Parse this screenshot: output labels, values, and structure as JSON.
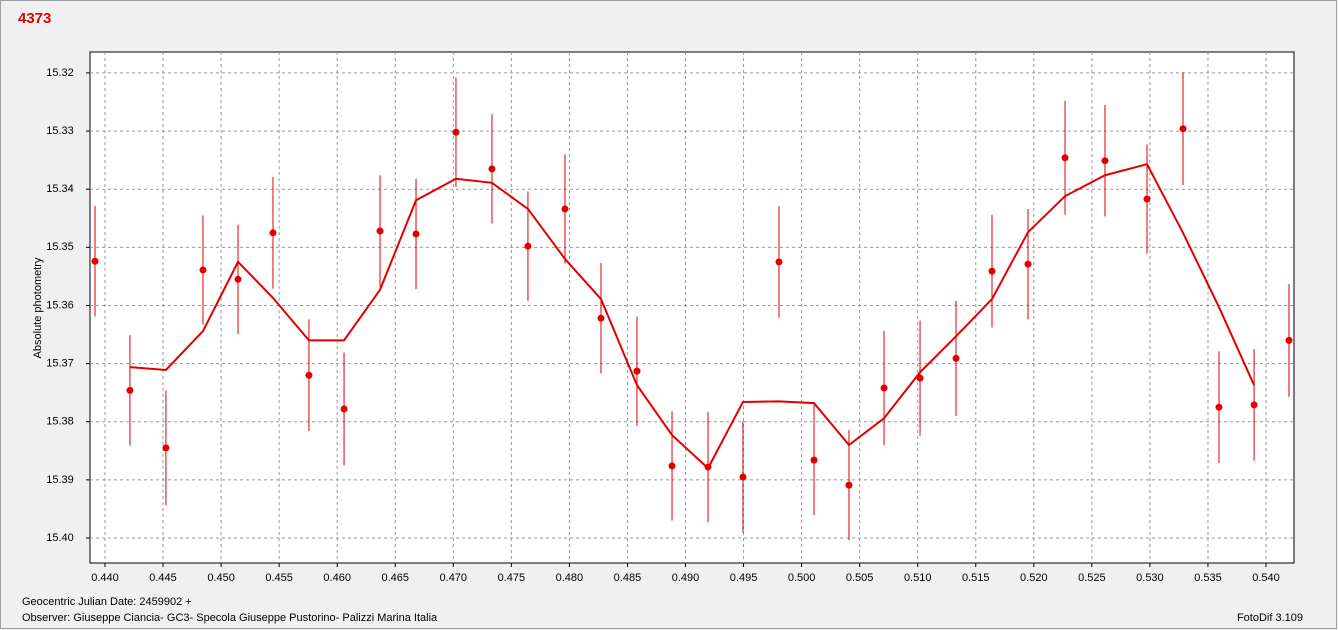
{
  "chart_data": {
    "type": "scatter",
    "title": "4373",
    "ylabel": "Absolute photometry",
    "footer": [
      "Geocentric Julian Date: 2459902 +",
      "Observer: Giuseppe Ciancia- GC3- Specola Giuseppe Pustorino- Palizzi Marina Italia"
    ],
    "software": "FotoDif 3.109",
    "grid": true,
    "y_inverted": true,
    "xlim": [
      0.43871,
      0.54241
    ],
    "ylim": [
      15.3164,
      15.4043
    ],
    "xticks": [
      {
        "value": 0.44,
        "label": "0.440"
      },
      0.445,
      {
        "value": 0.45,
        "label": "0.450"
      },
      0.455,
      {
        "value": 0.46,
        "label": "0.460"
      },
      0.465,
      {
        "value": 0.47,
        "label": "0.470"
      },
      0.475,
      {
        "value": 0.48,
        "label": "0.480"
      },
      0.485,
      {
        "value": 0.49,
        "label": "0.490"
      },
      0.495,
      {
        "value": 0.5,
        "label": "0.500"
      },
      0.505,
      {
        "value": 0.51,
        "label": "0.510"
      },
      0.515,
      {
        "value": 0.52,
        "label": "0.520"
      },
      0.525,
      {
        "value": 0.53,
        "label": "0.530"
      },
      0.535,
      {
        "value": 0.54,
        "label": "0.540"
      }
    ],
    "yticks": [
      15.32,
      15.33,
      15.34,
      15.35,
      15.36,
      15.37,
      15.38,
      15.39,
      {
        "value": 15.4,
        "label": "15.40"
      }
    ],
    "points": {
      "color": "#e00000",
      "x": [
        0.43914,
        0.44215,
        0.44525,
        0.44844,
        0.45146,
        0.45447,
        0.45757,
        0.46059,
        0.46369,
        0.46679,
        0.47023,
        0.47333,
        0.47643,
        0.47962,
        0.48272,
        0.48582,
        0.48884,
        0.49194,
        0.49495,
        0.49805,
        0.50107,
        0.50408,
        0.5071,
        0.5102,
        0.5133,
        0.5164,
        0.5195,
        0.52269,
        0.52613,
        0.52975,
        0.53285,
        0.53595,
        0.53897,
        0.54198
      ],
      "y": [
        15.3524,
        15.3746,
        15.3845,
        15.3539,
        15.3555,
        15.3475,
        15.372,
        15.3778,
        15.3472,
        15.3477,
        15.3302,
        15.3365,
        15.3498,
        15.3434,
        15.3622,
        15.3713,
        15.3876,
        15.3878,
        15.3895,
        15.3525,
        15.3866,
        15.3909,
        15.3742,
        15.3725,
        15.3691,
        15.3541,
        15.3529,
        15.3346,
        15.3351,
        15.3417,
        15.3296,
        15.3775,
        15.3771,
        15.366
      ],
      "err": [
        0.0095,
        0.0095,
        0.0099,
        0.0094,
        0.0094,
        0.0096,
        0.0096,
        0.0097,
        0.0096,
        0.0095,
        0.0094,
        0.0094,
        0.0094,
        0.0094,
        0.0095,
        0.0094,
        0.0094,
        0.0095,
        0.0096,
        0.0096,
        0.0095,
        0.0095,
        0.0098,
        0.0099,
        0.0099,
        0.0097,
        0.0095,
        0.0098,
        0.0096,
        0.0094,
        0.0097,
        0.0096,
        0.0096,
        0.0097
      ]
    },
    "fit": {
      "color": "#e00000",
      "x": [
        0.44215,
        0.44525,
        0.44844,
        0.45146,
        0.45447,
        0.45757,
        0.46059,
        0.46369,
        0.46679,
        0.47023,
        0.47333,
        0.47643,
        0.47962,
        0.48272,
        0.48582,
        0.48884,
        0.49194,
        0.49495,
        0.49805,
        0.50107,
        0.50408,
        0.5071,
        0.5102,
        0.5133,
        0.5164,
        0.5195,
        0.52269,
        0.52613,
        0.52975,
        0.53285,
        0.53595,
        0.53897
      ],
      "y": [
        15.3706,
        15.3711,
        15.3644,
        15.3525,
        15.3587,
        15.366,
        15.366,
        15.3573,
        15.3419,
        15.3382,
        15.3389,
        15.3434,
        15.352,
        15.3589,
        15.3737,
        15.3823,
        15.388,
        15.3766,
        15.3765,
        15.3768,
        15.384,
        15.3794,
        15.3715,
        15.3653,
        15.3589,
        15.3474,
        15.3412,
        15.3376,
        15.3357,
        15.3475,
        15.3603,
        15.3737
      ]
    }
  }
}
